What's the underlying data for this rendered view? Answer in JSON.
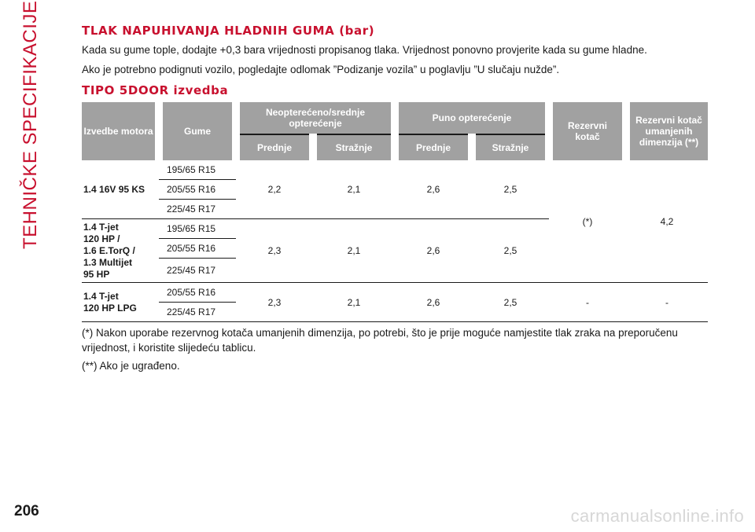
{
  "side_title": "TEHNIČKE SPECIFIKACIJE",
  "section_title": "TLAK NAPUHIVANJA HLADNIH GUMA (bar)",
  "intro_lines": [
    "Kada su gume tople, dodajte +0,3 bara vrijednosti propisanog tlaka. Vrijednost ponovno provjerite kada su gume hladne.",
    "Ako je potrebno podignuti vozilo, pogledajte odlomak ”Podizanje vozila” u poglavlju ”U slučaju nužde”."
  ],
  "subsection_title": "TIPO 5DOOR izvedba",
  "table": {
    "headers": {
      "engine": "Izvedbe motora",
      "tyres": "Gume",
      "partial_load": "Neopterećeno/srednje opterećenje",
      "full_load": "Puno opterećenje",
      "spare": "Rezervni kotač",
      "spare_reduced": "Rezervni kotač umanjenih dimenzija (**)",
      "front": "Prednje",
      "rear": "Stražnje"
    },
    "groups": [
      {
        "model": "1.4 16V 95 KS",
        "tyres": [
          "195/65 R15",
          "205/55 R16",
          "225/45 R17"
        ],
        "partial_front": "2,2",
        "partial_rear": "2,1",
        "full_front": "2,6",
        "full_rear": "2,5"
      },
      {
        "model": "1.4 T-jet\n120 HP /\n1.6 E.TorQ /\n1.3 Multijet\n95 HP",
        "tyres": [
          "195/65 R15",
          "205/55 R16",
          "225/45 R17"
        ],
        "partial_front": "2,3",
        "partial_rear": "2,1",
        "full_front": "2,6",
        "full_rear": "2,5"
      },
      {
        "model": "1.4 T-jet\n120 HP LPG",
        "tyres": [
          "205/55 R16",
          "225/45 R17"
        ],
        "partial_front": "2,3",
        "partial_rear": "2,1",
        "full_front": "2,6",
        "full_rear": "2,5",
        "spare": "-",
        "spare_reduced": "-"
      }
    ],
    "shared_spare": "(*)",
    "shared_spare_reduced": "4,2"
  },
  "footnotes": [
    "(*) Nakon uporabe rezervnog kotača umanjenih dimenzija, po potrebi, što je prije moguće namjestite tlak zraka na preporučenu vrijednost, i koristite slijedeću tablicu.",
    "(**) Ako je ugrađeno."
  ],
  "page_number": "206",
  "watermark": "carmanualsonline.info"
}
